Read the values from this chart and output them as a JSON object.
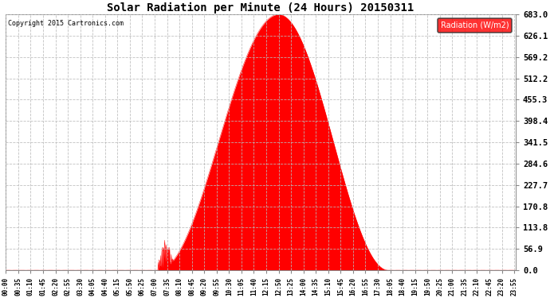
{
  "title": "Solar Radiation per Minute (24 Hours) 20150311",
  "copyright": "Copyright 2015 Cartronics.com",
  "legend_label": "Radiation (W/m2)",
  "fill_color": "#FF0000",
  "line_color": "#FF0000",
  "background_color": "#FFFFFF",
  "grid_color": "#BBBBBB",
  "dashed_line_color": "#FF0000",
  "yticks": [
    0.0,
    56.9,
    113.8,
    170.8,
    227.7,
    284.6,
    341.5,
    398.4,
    455.3,
    512.2,
    569.2,
    626.1,
    683.0
  ],
  "ymax": 683.0,
  "peak_value": 683.0,
  "peak_minute": 770,
  "sunrise_minute": 430,
  "sunset_minute": 1080,
  "total_minutes": 1440,
  "tick_step": 35
}
